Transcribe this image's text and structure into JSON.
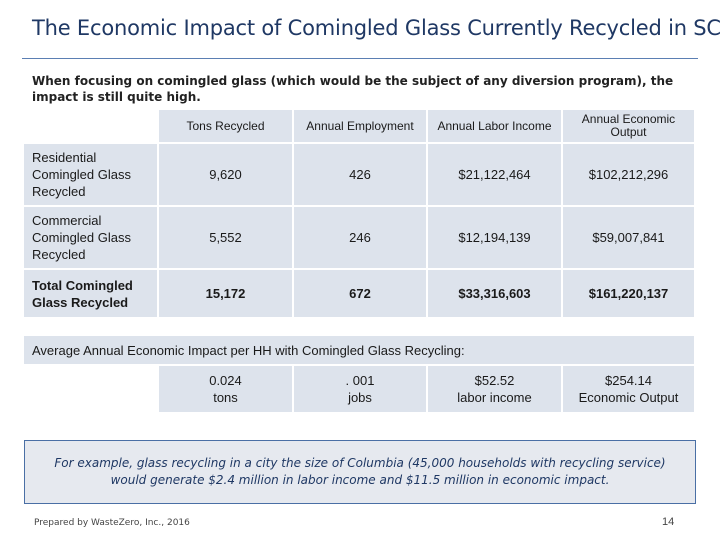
{
  "title": "The Economic Impact of Comingled Glass Currently Recycled in SC",
  "intro": "When focusing on comingled glass (which would be the subject of any diversion program), the impact is still quite high.",
  "table": {
    "headers": [
      "Tons Recycled",
      "Annual Employment",
      "Annual Labor Income",
      "Annual Economic Output"
    ],
    "rows": [
      {
        "label": "Residential Comingled Glass Recycled",
        "values": [
          "9,620",
          "426",
          "$21,122,464",
          "$102,212,296"
        ]
      },
      {
        "label": "Commercial Comingled Glass Recycled",
        "values": [
          "5,552",
          "246",
          "$12,194,139",
          "$59,007,841"
        ]
      },
      {
        "label": "Total Comingled Glass Recycled",
        "values": [
          "15,172",
          "672",
          "$33,316,603",
          "$161,220,137"
        ]
      }
    ]
  },
  "average": {
    "banner": "Average Annual Economic Impact per HH with Comingled Glass Recycling:",
    "cells": [
      {
        "value": "0.024",
        "unit": "tons"
      },
      {
        "value": ". 001",
        "unit": "jobs"
      },
      {
        "value": "$52.52",
        "unit": "labor income"
      },
      {
        "value": "$254.14",
        "unit": "Economic Output"
      }
    ]
  },
  "callout": "For example, glass recycling in a city the size of Columbia (45,000 households with recycling service) would generate $2.4 million in labor income and $11.5 million in economic impact.",
  "footer": "Prepared by WasteZero, Inc., 2016",
  "page_number": "14"
}
